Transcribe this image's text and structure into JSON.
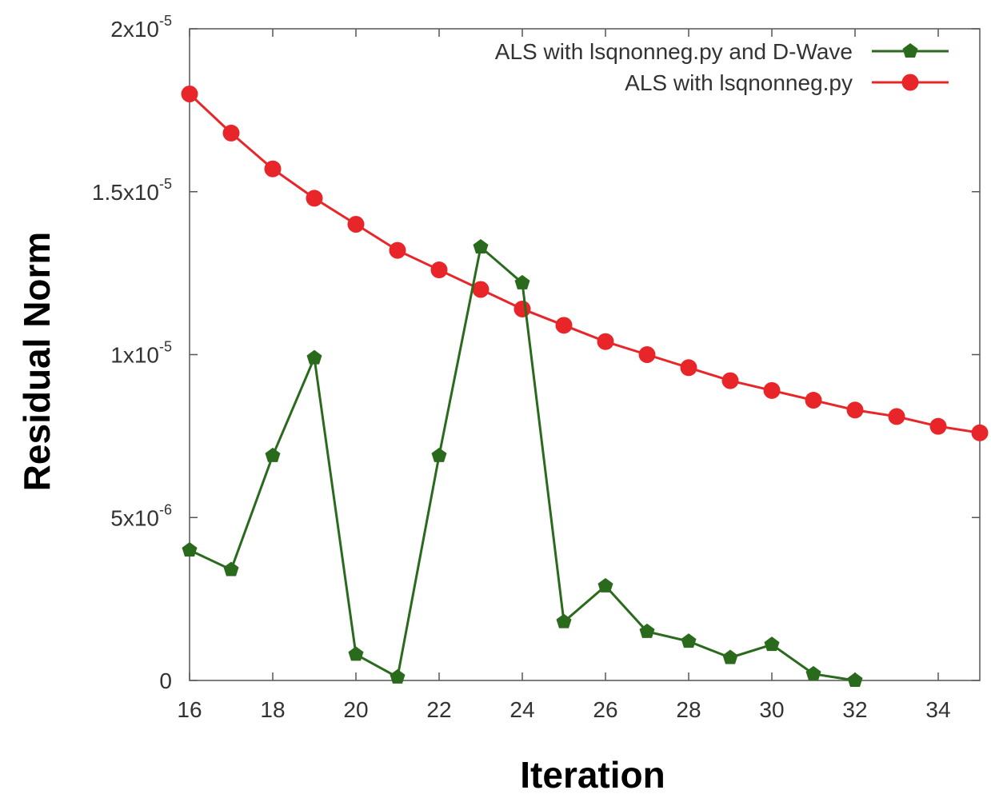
{
  "chart_data": {
    "type": "line",
    "title": "",
    "xlabel": "Iteration",
    "ylabel": "Residual Norm",
    "xlim": [
      16,
      35
    ],
    "ylim": [
      0,
      2e-05
    ],
    "x_ticks": [
      16,
      18,
      20,
      22,
      24,
      26,
      28,
      30,
      32,
      34
    ],
    "x_tick_labels": [
      "16",
      "18",
      "20",
      "22",
      "24",
      "26",
      "28",
      "30",
      "32",
      "34"
    ],
    "y_ticks": [
      0,
      5e-06,
      1e-05,
      1.5e-05,
      2e-05
    ],
    "y_tick_labels": [
      {
        "mantissa": "0",
        "exponent": ""
      },
      {
        "mantissa": "5x10",
        "exponent": "-6"
      },
      {
        "mantissa": "1x10",
        "exponent": "-5"
      },
      {
        "mantissa": "1.5x10",
        "exponent": "-5"
      },
      {
        "mantissa": "2x10",
        "exponent": "-5"
      }
    ],
    "grid": false,
    "legend_position": "top-right",
    "series": [
      {
        "name": "ALS with lsqnonneg.py and D-Wave",
        "color": "#2a6a1c",
        "x": [
          16,
          17,
          18,
          19,
          20,
          21,
          22,
          23,
          24,
          25,
          26,
          27,
          28,
          29,
          30,
          31,
          32
        ],
        "y": [
          4e-06,
          3.4e-06,
          6.9e-06,
          9.9e-06,
          8e-07,
          1e-07,
          6.9e-06,
          1.33e-05,
          1.22e-05,
          1.8e-06,
          2.9e-06,
          1.5e-06,
          1.2e-06,
          7e-07,
          1.1e-06,
          2e-07,
          0.0
        ]
      },
      {
        "name": "ALS with lsqnonneg.py",
        "color": "#e8262a",
        "x": [
          16,
          17,
          18,
          19,
          20,
          21,
          22,
          23,
          24,
          25,
          26,
          27,
          28,
          29,
          30,
          31,
          32,
          33,
          34,
          35
        ],
        "y": [
          1.8e-05,
          1.68e-05,
          1.57e-05,
          1.48e-05,
          1.4e-05,
          1.32e-05,
          1.26e-05,
          1.2e-05,
          1.14e-05,
          1.09e-05,
          1.04e-05,
          1e-05,
          9.6e-06,
          9.2e-06,
          8.9e-06,
          8.6e-06,
          8.3e-06,
          8.1e-06,
          7.8e-06,
          7.6e-06
        ]
      }
    ]
  }
}
